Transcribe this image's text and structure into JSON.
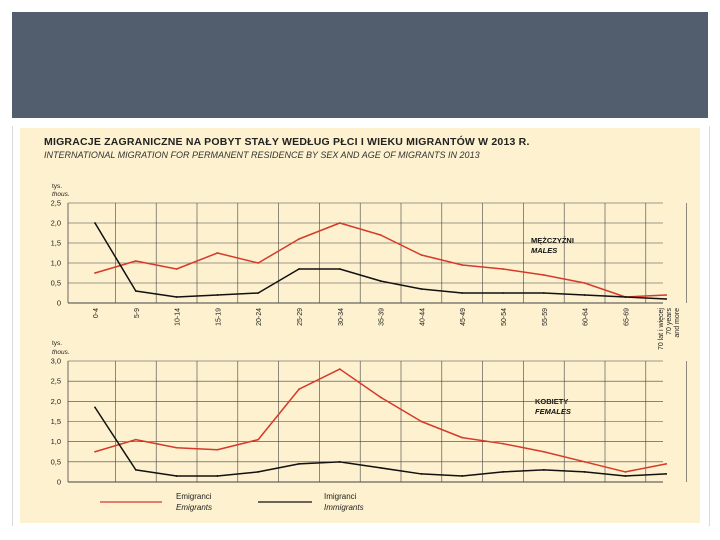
{
  "slide": {
    "banner_color": "#525e6e"
  },
  "header": {
    "title": "MIGRACJE ZAGRANICZNE NA POBYT STAŁY WEDŁUG PŁCI I WIEKU MIGRANTÓW W 2013 R.",
    "subtitle": "INTERNATIONAL MIGRATION FOR PERMANENT RESIDENCE BY SEX AND AGE OF MIGRANTS IN 2013"
  },
  "legend": {
    "emigrants_pl": "Emigranci",
    "emigrants_en": "Emigrants",
    "immigrants_pl": "Imigranci",
    "immigrants_en": "Immigrants"
  },
  "colors": {
    "emigrants": "#d63a2a",
    "immigrants": "#111111",
    "panel": "#fdf1cf",
    "grid": "#444444"
  },
  "chart_data": [
    {
      "type": "line",
      "panel": "males",
      "unit_pl": "tys.",
      "unit_en": "thous.",
      "label_pl": "MĘŻCZYŹNI",
      "label_en": "MALES",
      "ylim": [
        0,
        2.5
      ],
      "yticks": [
        "0",
        "0,5",
        "1,0",
        "1,5",
        "2,0",
        "2,5"
      ],
      "categories": [
        "0-4",
        "5-9",
        "10-14",
        "15-19",
        "20-24",
        "25-29",
        "30-34",
        "35-39",
        "40-44",
        "45-49",
        "50-54",
        "55-59",
        "60-64",
        "65-69",
        "70 lat i więcej / 70 years and more"
      ],
      "series": [
        {
          "name": "Emigranci",
          "color": "#d63a2a",
          "values": [
            0.75,
            1.05,
            0.85,
            1.25,
            1.0,
            1.6,
            2.0,
            1.7,
            1.2,
            0.95,
            0.85,
            0.7,
            0.5,
            0.15,
            0.2
          ]
        },
        {
          "name": "Imigranci",
          "color": "#111111",
          "values": [
            2.0,
            0.3,
            0.15,
            0.2,
            0.25,
            0.85,
            0.85,
            0.55,
            0.35,
            0.25,
            0.25,
            0.25,
            0.2,
            0.15,
            0.1
          ]
        }
      ],
      "grid": true
    },
    {
      "type": "line",
      "panel": "females",
      "unit_pl": "tys.",
      "unit_en": "thous.",
      "label_pl": "KOBIETY",
      "label_en": "FEMALES",
      "ylim": [
        0,
        3.0
      ],
      "yticks": [
        "0",
        "0,5",
        "1,0",
        "1,5",
        "2,0",
        "2,5",
        "3,0"
      ],
      "categories": [
        "0-4",
        "5-9",
        "10-14",
        "15-19",
        "20-24",
        "25-29",
        "30-34",
        "35-39",
        "40-44",
        "45-49",
        "50-54",
        "55-59",
        "60-64",
        "65-69",
        "70 lat i więcej / 70 years and more"
      ],
      "series": [
        {
          "name": "Emigranci",
          "color": "#d63a2a",
          "values": [
            0.75,
            1.05,
            0.85,
            0.8,
            1.05,
            2.3,
            2.8,
            2.1,
            1.5,
            1.1,
            0.95,
            0.75,
            0.5,
            0.25,
            0.45
          ]
        },
        {
          "name": "Imigranci",
          "color": "#111111",
          "values": [
            1.85,
            0.3,
            0.15,
            0.15,
            0.25,
            0.45,
            0.5,
            0.35,
            0.2,
            0.15,
            0.25,
            0.3,
            0.25,
            0.15,
            0.2
          ]
        }
      ],
      "grid": true
    }
  ]
}
